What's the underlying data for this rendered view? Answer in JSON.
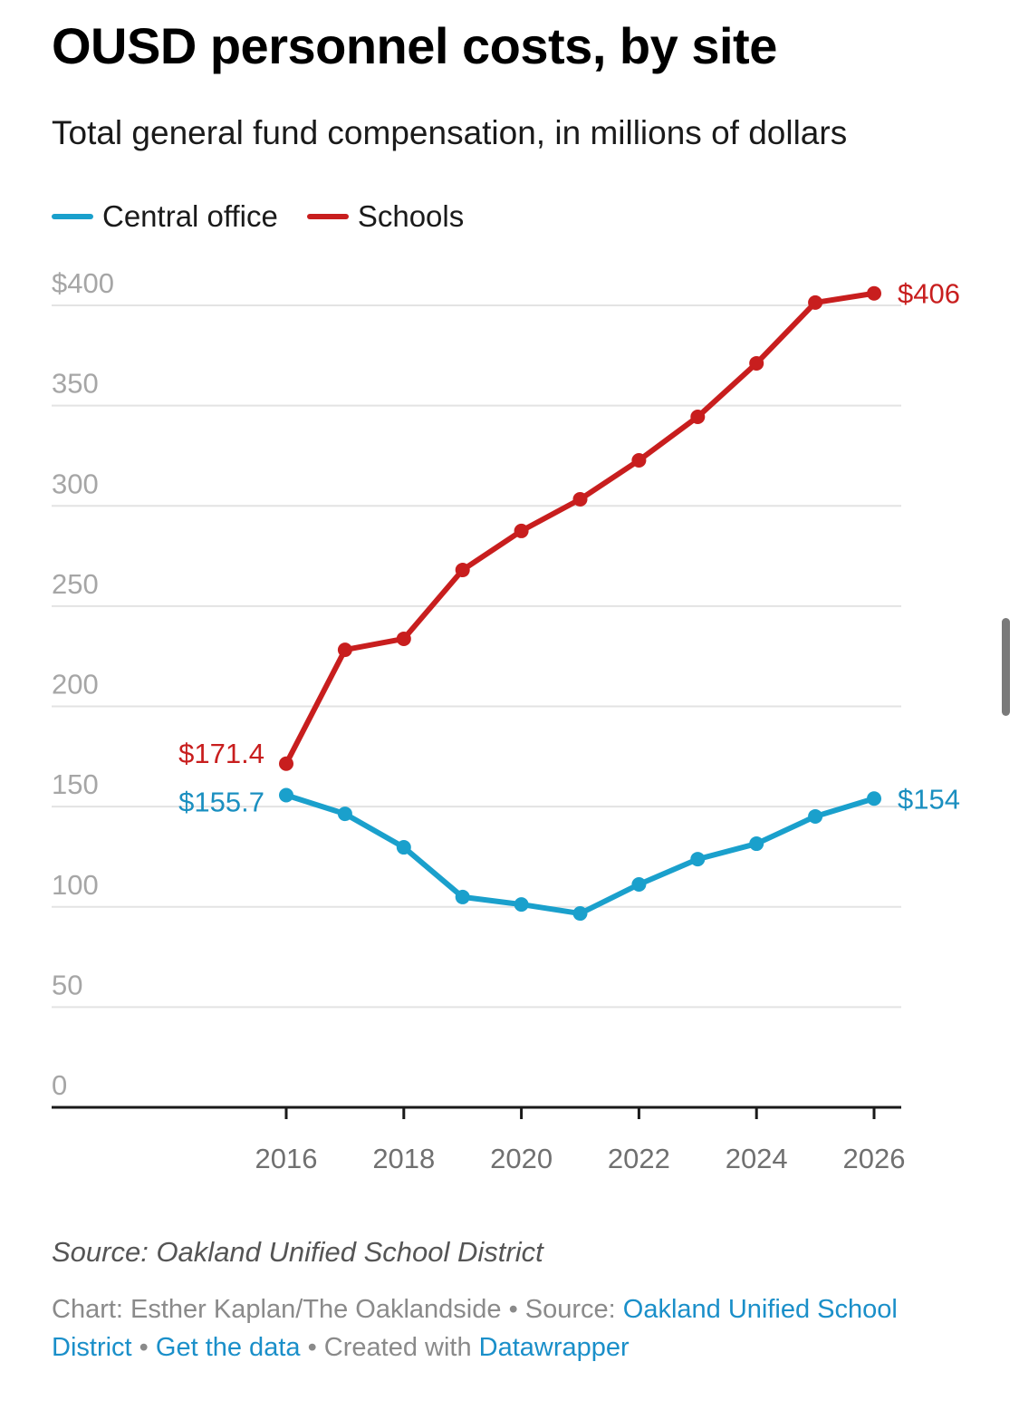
{
  "header": {
    "title": "OUSD personnel costs, by site",
    "subtitle": "Total general fund compensation, in millions of dollars"
  },
  "legend": [
    {
      "label": "Central office",
      "color": "#1aa0cc"
    },
    {
      "label": "Schools",
      "color": "#c81e1e"
    }
  ],
  "chart_data": {
    "type": "line",
    "title": "OUSD personnel costs, by site",
    "subtitle": "Total general fund compensation, in millions of dollars",
    "xlabel": "",
    "ylabel": "",
    "x": [
      2016,
      2017,
      2018,
      2019,
      2020,
      2021,
      2022,
      2023,
      2024,
      2025,
      2026
    ],
    "xlim": [
      2012,
      2026.5
    ],
    "ylim": [
      0,
      400
    ],
    "x_ticks": [
      2016,
      2018,
      2020,
      2022,
      2024,
      2026
    ],
    "x_tick_labels": [
      "2016",
      "2018",
      "2020",
      "2022",
      "2024",
      "2026"
    ],
    "y_ticks": [
      0,
      50,
      100,
      150,
      200,
      250,
      300,
      350,
      400
    ],
    "y_tick_labels": [
      "0",
      "50",
      "100",
      "150",
      "200",
      "250",
      "300",
      "350",
      "$400"
    ],
    "grid": true,
    "legend_position": "top-left",
    "series": [
      {
        "name": "Central office",
        "color": "#1aa0cc",
        "label_color": "#1a8fc0",
        "values": [
          155.7,
          146.4,
          129.7,
          104.9,
          101.2,
          96.7,
          111.2,
          123.8,
          131.5,
          145.1,
          154
        ],
        "start_label": "$155.7",
        "end_label": "$154"
      },
      {
        "name": "Schools",
        "color": "#c81e1e",
        "label_color": "#c81e1e",
        "values": [
          171.4,
          228.2,
          233.7,
          268.0,
          287.5,
          303.3,
          322.7,
          344.4,
          371.1,
          401.4,
          406
        ],
        "start_label": "$171.4",
        "end_label": "$406"
      }
    ]
  },
  "footer": {
    "source_note": "Source: Oakland Unified School District",
    "credit_prefix": "Chart: Esther Kaplan/The Oaklandside ",
    "separator": " • ",
    "source_label": "Source: ",
    "source_link": "Oakland Unified School District",
    "data_link": "Get the data",
    "created_with": "Created with ",
    "tool_link": "Datawrapper"
  }
}
